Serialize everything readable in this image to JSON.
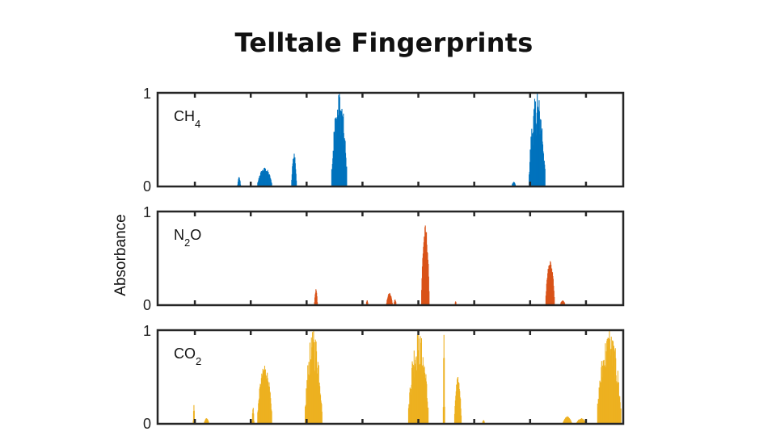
{
  "chart_data": {
    "type": "area",
    "title": "Telltale Fingerprints",
    "ylabel": "Absorbance",
    "xlim": [
      0,
      100
    ],
    "ylim": [
      0,
      1
    ],
    "x_ticks": [
      8,
      20,
      32,
      44,
      56,
      68,
      80,
      92
    ],
    "y_ticks": [
      "0",
      "1"
    ],
    "grid": false,
    "panels": [
      {
        "name": "CH",
        "subscript": "4",
        "color": "#0072BD",
        "peaks": [
          {
            "center": 17.5,
            "width": 0.6,
            "height": 0.1
          },
          {
            "center": 23.0,
            "width": 3.0,
            "height": 0.2
          },
          {
            "center": 29.3,
            "width": 1.0,
            "height": 0.35
          },
          {
            "center": 39.0,
            "width": 3.2,
            "height": 1.0
          },
          {
            "center": 81.5,
            "width": 3.4,
            "height": 1.0
          },
          {
            "center": 76.5,
            "width": 0.8,
            "height": 0.05
          }
        ]
      },
      {
        "name": "N",
        "subscript": "2",
        "name_after": "O",
        "color": "#D95319",
        "peaks": [
          {
            "center": 34.0,
            "width": 0.6,
            "height": 0.17
          },
          {
            "center": 45.0,
            "width": 0.4,
            "height": 0.05
          },
          {
            "center": 49.8,
            "width": 1.2,
            "height": 0.13
          },
          {
            "center": 51.0,
            "width": 0.5,
            "height": 0.06
          },
          {
            "center": 57.5,
            "width": 1.6,
            "height": 0.85
          },
          {
            "center": 64.0,
            "width": 0.3,
            "height": 0.04
          },
          {
            "center": 84.3,
            "width": 1.8,
            "height": 0.47
          },
          {
            "center": 87.0,
            "width": 1.0,
            "height": 0.05
          }
        ]
      },
      {
        "name": "CO",
        "subscript": "2",
        "color": "#EDB120",
        "peaks": [
          {
            "center": 7.8,
            "width": 0.3,
            "height": 0.2
          },
          {
            "center": 10.5,
            "width": 1.0,
            "height": 0.06
          },
          {
            "center": 20.5,
            "width": 0.4,
            "height": 0.17
          },
          {
            "center": 23.0,
            "width": 3.0,
            "height": 0.62
          },
          {
            "center": 33.5,
            "width": 3.6,
            "height": 1.0
          },
          {
            "center": 56.0,
            "width": 4.2,
            "height": 1.0
          },
          {
            "center": 61.5,
            "width": 0.3,
            "height": 0.95
          },
          {
            "center": 64.5,
            "width": 1.4,
            "height": 0.5
          },
          {
            "center": 70.0,
            "width": 0.5,
            "height": 0.04
          },
          {
            "center": 88.0,
            "width": 1.8,
            "height": 0.08
          },
          {
            "center": 91.0,
            "width": 2.0,
            "height": 0.06
          },
          {
            "center": 97.0,
            "width": 5.0,
            "height": 1.0
          }
        ]
      }
    ]
  }
}
